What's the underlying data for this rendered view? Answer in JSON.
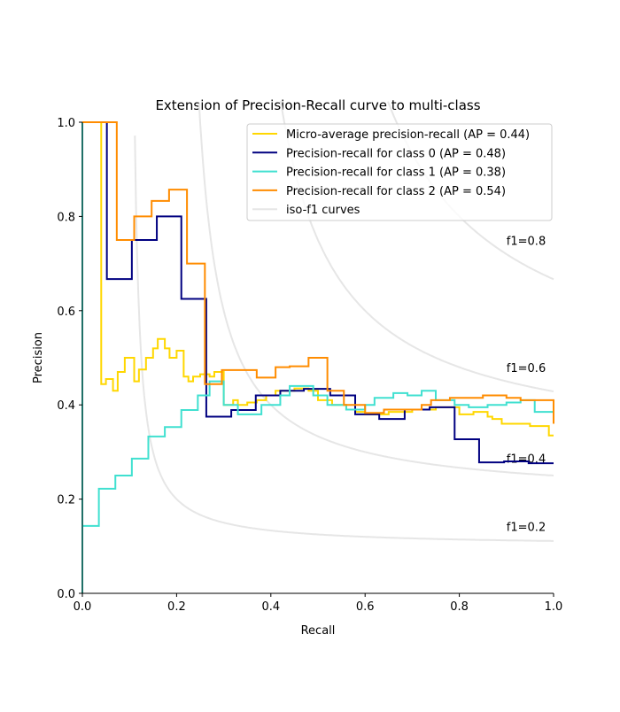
{
  "chart_data": {
    "type": "line",
    "title": "Extension of Precision-Recall curve to multi-class",
    "xlabel": "Recall",
    "ylabel": "Precision",
    "xlim": [
      0,
      1
    ],
    "ylim": [
      0,
      1
    ],
    "xticks": [
      "0.0",
      "0.2",
      "0.4",
      "0.6",
      "0.8",
      "1.0"
    ],
    "yticks": [
      "0.0",
      "0.2",
      "0.4",
      "0.6",
      "0.8",
      "1.0"
    ],
    "grid": false,
    "legend_position": "top-right",
    "iso_f1": {
      "name": "iso-f1 curves",
      "color": "#e6e6e6",
      "values": [
        0.2,
        0.4,
        0.6,
        0.8
      ],
      "labels": [
        "f1=0.2",
        "f1=0.4",
        "f1=0.6",
        "f1=0.8"
      ]
    },
    "series": [
      {
        "name": "Micro-average precision-recall (AP = 0.44)",
        "color": "#ffd700",
        "steps": [
          [
            0.04,
            1.0
          ],
          [
            0.05,
            0.444
          ],
          [
            0.065,
            0.455
          ],
          [
            0.075,
            0.43
          ],
          [
            0.09,
            0.47
          ],
          [
            0.11,
            0.5
          ],
          [
            0.12,
            0.45
          ],
          [
            0.135,
            0.475
          ],
          [
            0.15,
            0.5
          ],
          [
            0.16,
            0.52
          ],
          [
            0.175,
            0.54
          ],
          [
            0.185,
            0.52
          ],
          [
            0.2,
            0.5
          ],
          [
            0.215,
            0.515
          ],
          [
            0.225,
            0.46
          ],
          [
            0.235,
            0.45
          ],
          [
            0.25,
            0.46
          ],
          [
            0.27,
            0.465
          ],
          [
            0.28,
            0.46
          ],
          [
            0.3,
            0.47
          ],
          [
            0.32,
            0.4
          ],
          [
            0.33,
            0.41
          ],
          [
            0.35,
            0.4
          ],
          [
            0.37,
            0.405
          ],
          [
            0.39,
            0.41
          ],
          [
            0.41,
            0.42
          ],
          [
            0.45,
            0.43
          ],
          [
            0.48,
            0.435
          ],
          [
            0.5,
            0.43
          ],
          [
            0.53,
            0.41
          ],
          [
            0.56,
            0.4
          ],
          [
            0.58,
            0.39
          ],
          [
            0.6,
            0.385
          ],
          [
            0.65,
            0.38
          ],
          [
            0.7,
            0.385
          ],
          [
            0.75,
            0.39
          ],
          [
            0.8,
            0.395
          ],
          [
            0.83,
            0.38
          ],
          [
            0.86,
            0.385
          ],
          [
            0.87,
            0.375
          ],
          [
            0.89,
            0.37
          ],
          [
            0.91,
            0.36
          ],
          [
            0.95,
            0.36
          ],
          [
            0.99,
            0.355
          ],
          [
            1.0,
            0.335
          ]
        ]
      },
      {
        "name": "Precision-recall for class 0 (AP = 0.48)",
        "color": "#000080",
        "steps": [
          [
            0.052,
            1.0
          ],
          [
            0.105,
            0.667
          ],
          [
            0.158,
            0.75
          ],
          [
            0.21,
            0.8
          ],
          [
            0.263,
            0.625
          ],
          [
            0.316,
            0.375
          ],
          [
            0.368,
            0.389
          ],
          [
            0.42,
            0.42
          ],
          [
            0.47,
            0.43
          ],
          [
            0.526,
            0.434
          ],
          [
            0.579,
            0.42
          ],
          [
            0.63,
            0.38
          ],
          [
            0.684,
            0.37
          ],
          [
            0.737,
            0.39
          ],
          [
            0.79,
            0.395
          ],
          [
            0.842,
            0.327
          ],
          [
            0.895,
            0.278
          ],
          [
            0.947,
            0.28
          ],
          [
            1.0,
            0.276
          ]
        ]
      },
      {
        "name": "Precision-recall for class 1 (AP = 0.38)",
        "color": "#40e0d0",
        "steps": [
          [
            0.0,
            1.0
          ],
          [
            0.035,
            0.143
          ],
          [
            0.07,
            0.222
          ],
          [
            0.105,
            0.25
          ],
          [
            0.14,
            0.286
          ],
          [
            0.175,
            0.333
          ],
          [
            0.21,
            0.353
          ],
          [
            0.245,
            0.389
          ],
          [
            0.27,
            0.42
          ],
          [
            0.3,
            0.45
          ],
          [
            0.33,
            0.4
          ],
          [
            0.38,
            0.38
          ],
          [
            0.42,
            0.4
          ],
          [
            0.44,
            0.42
          ],
          [
            0.49,
            0.44
          ],
          [
            0.52,
            0.42
          ],
          [
            0.56,
            0.4
          ],
          [
            0.6,
            0.39
          ],
          [
            0.62,
            0.4
          ],
          [
            0.66,
            0.415
          ],
          [
            0.69,
            0.425
          ],
          [
            0.72,
            0.42
          ],
          [
            0.75,
            0.43
          ],
          [
            0.79,
            0.41
          ],
          [
            0.82,
            0.4
          ],
          [
            0.86,
            0.395
          ],
          [
            0.9,
            0.4
          ],
          [
            0.93,
            0.405
          ],
          [
            0.96,
            0.41
          ],
          [
            1.0,
            0.385
          ]
        ]
      },
      {
        "name": "Precision-recall for class 2 (AP = 0.54)",
        "color": "#ff8c00",
        "steps": [
          [
            0.073,
            1.0
          ],
          [
            0.11,
            0.75
          ],
          [
            0.147,
            0.8
          ],
          [
            0.184,
            0.833
          ],
          [
            0.222,
            0.857
          ],
          [
            0.26,
            0.7
          ],
          [
            0.296,
            0.444
          ],
          [
            0.37,
            0.474
          ],
          [
            0.41,
            0.458
          ],
          [
            0.44,
            0.48
          ],
          [
            0.48,
            0.482
          ],
          [
            0.52,
            0.5
          ],
          [
            0.555,
            0.43
          ],
          [
            0.6,
            0.4
          ],
          [
            0.64,
            0.383
          ],
          [
            0.72,
            0.39
          ],
          [
            0.74,
            0.4
          ],
          [
            0.78,
            0.41
          ],
          [
            0.85,
            0.415
          ],
          [
            0.9,
            0.42
          ],
          [
            0.93,
            0.415
          ],
          [
            1.0,
            0.41
          ]
        ],
        "end": 0.36
      }
    ]
  }
}
